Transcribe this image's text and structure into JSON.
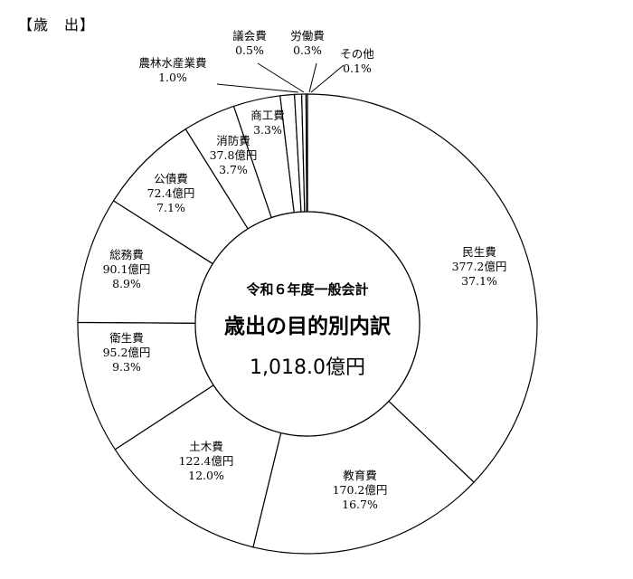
{
  "heading": "【歳　出】",
  "chart_data": {
    "type": "pie",
    "center": {
      "subtitle": "令和６年度一般会計",
      "title": "歳出の目的別内訳",
      "total": "1,018.0億円"
    },
    "slices": [
      {
        "name": "民生費",
        "amount": "377.2億円",
        "percent": "37.1%",
        "value": 37.1
      },
      {
        "name": "教育費",
        "amount": "170.2億円",
        "percent": "16.7%",
        "value": 16.7
      },
      {
        "name": "土木費",
        "amount": "122.4億円",
        "percent": "12.0%",
        "value": 12.0
      },
      {
        "name": "衛生費",
        "amount": "95.2億円",
        "percent": "9.3%",
        "value": 9.3
      },
      {
        "name": "総務費",
        "amount": "90.1億円",
        "percent": "8.9%",
        "value": 8.9
      },
      {
        "name": "公債費",
        "amount": "72.4億円",
        "percent": "7.1%",
        "value": 7.1
      },
      {
        "name": "消防費",
        "amount": "37.8億円",
        "percent": "3.7%",
        "value": 3.7
      },
      {
        "name": "商工費",
        "amount": "",
        "percent": "3.3%",
        "value": 3.3
      },
      {
        "name": "農林水産業費",
        "amount": "",
        "percent": "1.0%",
        "value": 1.0
      },
      {
        "name": "議会費",
        "amount": "",
        "percent": "0.5%",
        "value": 0.5
      },
      {
        "name": "労働費",
        "amount": "",
        "percent": "0.3%",
        "value": 0.3
      },
      {
        "name": "その他",
        "amount": "",
        "percent": "0.1%",
        "value": 0.1
      }
    ]
  }
}
